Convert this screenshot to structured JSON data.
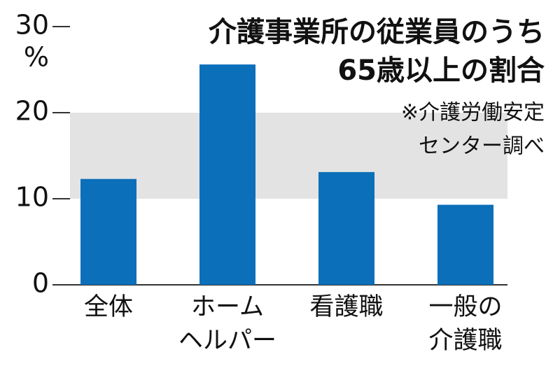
{
  "chart_data": {
    "type": "bar",
    "title": [
      "介護事業所の従業員のうち",
      "65歳以上の割合"
    ],
    "note": [
      "※介護労働安定",
      "センター調べ"
    ],
    "y_unit": "%",
    "categories": [
      [
        "全体"
      ],
      [
        "ホーム",
        "ヘルパー"
      ],
      [
        "看護職"
      ],
      [
        "一般の",
        "介護職"
      ]
    ],
    "values": [
      12.3,
      25.6,
      13.1,
      9.3
    ],
    "color": "#0b6fba",
    "ylim": [
      0,
      30
    ],
    "yticks": [
      0,
      10,
      20,
      30
    ],
    "band": [
      1,
      2
    ],
    "band_color": "#e3e3e3"
  }
}
